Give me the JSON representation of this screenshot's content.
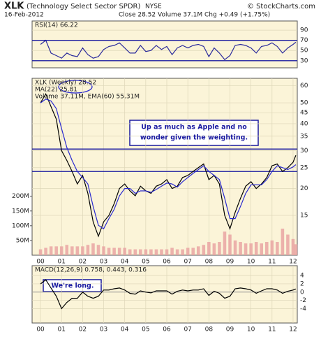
{
  "header": {
    "symbol": "XLK",
    "name": "(Technology Select Sector SPDR)",
    "exchange": "NYSE",
    "date": "16-Feb-2012",
    "quote": "Close 28.52  Volume 37.1M  Chg +0.49 (+1.75%)",
    "credit": "© StockCharts.com"
  },
  "chart_data": [
    {
      "type": "line",
      "legend": "RSI(14) 66.22",
      "x": [
        2000,
        2000.25,
        2000.5,
        2000.75,
        2001,
        2001.25,
        2001.5,
        2001.75,
        2002,
        2002.25,
        2002.5,
        2002.75,
        2003,
        2003.25,
        2003.5,
        2003.75,
        2004,
        2004.25,
        2004.5,
        2004.75,
        2005,
        2005.25,
        2005.5,
        2005.75,
        2006,
        2006.25,
        2006.5,
        2006.75,
        2007,
        2007.25,
        2007.5,
        2007.75,
        2008,
        2008.25,
        2008.5,
        2008.75,
        2009,
        2009.25,
        2009.5,
        2009.75,
        2010,
        2010.25,
        2010.5,
        2010.75,
        2011,
        2011.25,
        2011.5,
        2011.75,
        2012,
        2012.13
      ],
      "series": [
        {
          "name": "RSI(14)",
          "color": "#2a2a9c",
          "values": [
            62,
            70,
            45,
            40,
            35,
            45,
            40,
            38,
            55,
            42,
            35,
            38,
            52,
            58,
            60,
            65,
            55,
            45,
            45,
            60,
            48,
            50,
            60,
            52,
            58,
            42,
            55,
            60,
            55,
            60,
            62,
            58,
            38,
            55,
            45,
            32,
            40,
            60,
            62,
            60,
            55,
            45,
            58,
            60,
            65,
            58,
            45,
            55,
            62,
            66.22
          ]
        }
      ],
      "xlim": [
        1999.6,
        2012.2
      ],
      "ylim": [
        16,
        108
      ],
      "yticks": [
        30,
        50,
        70,
        90
      ],
      "levels": [
        70,
        30
      ]
    },
    {
      "type": "line",
      "legend": "XLK (Weekly) 28.52",
      "legend2": "MA(22) 25.81",
      "legend3": "Volume 37.11M, EMA(60) 55.31M",
      "log_scale": true,
      "x": [
        2000,
        2000.25,
        2000.5,
        2000.75,
        2001,
        2001.25,
        2001.5,
        2001.75,
        2002,
        2002.25,
        2002.5,
        2002.75,
        2003,
        2003.25,
        2003.5,
        2003.75,
        2004,
        2004.25,
        2004.5,
        2004.75,
        2005,
        2005.25,
        2005.5,
        2005.75,
        2006,
        2006.25,
        2006.5,
        2006.75,
        2007,
        2007.25,
        2007.5,
        2007.75,
        2008,
        2008.25,
        2008.5,
        2008.75,
        2009,
        2009.25,
        2009.5,
        2009.75,
        2010,
        2010.25,
        2010.5,
        2010.75,
        2011,
        2011.25,
        2011.5,
        2011.75,
        2012,
        2012.13
      ],
      "series": [
        {
          "name": "XLK",
          "color": "#000000",
          "values": [
            50,
            55,
            48,
            42,
            30,
            27,
            24,
            21,
            23,
            19,
            14,
            12,
            14,
            15,
            17,
            20,
            21,
            19.5,
            18.5,
            20.5,
            19.5,
            19,
            20.5,
            21,
            22,
            20,
            20.5,
            22.5,
            23,
            24,
            25,
            26,
            22,
            23,
            21,
            15,
            13,
            15.5,
            18,
            20.5,
            21.5,
            20,
            21,
            22.5,
            25.5,
            26,
            24,
            25,
            26.5,
            28.52
          ]
        },
        {
          "name": "MA(22)",
          "color": "#2a2ad0",
          "values": [
            50,
            52,
            51,
            47,
            38,
            31,
            27,
            24,
            22.5,
            21,
            16.5,
            13.5,
            13,
            14.5,
            16,
            18.5,
            20,
            20,
            19,
            19.5,
            19.5,
            19.2,
            19.8,
            20.5,
            21.2,
            21,
            20.3,
            21.5,
            22.5,
            23.5,
            24.5,
            25.5,
            24,
            23,
            22,
            18,
            14.5,
            14.5,
            16.5,
            19,
            20.8,
            20.8,
            20.8,
            22,
            24,
            25.5,
            25,
            24.5,
            25.2,
            25.81
          ]
        },
        {
          "name": "Volume",
          "color": "#e8a0a0",
          "axis": "y2",
          "values": [
            20,
            25,
            30,
            30,
            30,
            35,
            30,
            30,
            30,
            35,
            40,
            35,
            30,
            25,
            25,
            25,
            25,
            20,
            20,
            20,
            20,
            20,
            20,
            20,
            20,
            25,
            20,
            20,
            25,
            25,
            30,
            35,
            45,
            40,
            45,
            80,
            70,
            50,
            45,
            40,
            40,
            45,
            40,
            45,
            50,
            45,
            90,
            70,
            55,
            37.11
          ]
        }
      ],
      "xlim": [
        1999.6,
        2012.2
      ],
      "ylim": [
        9.8,
        65
      ],
      "yticks": [
        15,
        20,
        25,
        30,
        35,
        40,
        45,
        50,
        60
      ],
      "y2lim": [
        0,
        600
      ],
      "y2ticks": [
        {
          "value": 50,
          "label": "50M"
        },
        {
          "value": 100,
          "label": "100M"
        },
        {
          "value": 150,
          "label": "150M"
        },
        {
          "value": 200,
          "label": "200M"
        }
      ],
      "xticks": [
        {
          "value": 2000,
          "label": "00"
        },
        {
          "value": 2001,
          "label": "01"
        },
        {
          "value": 2002,
          "label": "02"
        },
        {
          "value": 2003,
          "label": "03"
        },
        {
          "value": 2004,
          "label": "04"
        },
        {
          "value": 2005,
          "label": "05"
        },
        {
          "value": 2006,
          "label": "06"
        },
        {
          "value": 2007,
          "label": "07"
        },
        {
          "value": 2008,
          "label": "08"
        },
        {
          "value": 2009,
          "label": "09"
        },
        {
          "value": 2010,
          "label": "10"
        },
        {
          "value": 2011,
          "label": "11"
        },
        {
          "value": 2012,
          "label": "12"
        }
      ],
      "levels": [
        30.5,
        24
      ],
      "annotations": [
        "Up as much as Apple and no",
        "wonder given the weighting."
      ]
    },
    {
      "type": "line",
      "legend": "MACD(12,26,9) 0.758, 0.443, 0.316",
      "x": [
        2000,
        2000.25,
        2000.5,
        2000.75,
        2001,
        2001.25,
        2001.5,
        2001.75,
        2002,
        2002.25,
        2002.5,
        2002.75,
        2003,
        2003.25,
        2003.5,
        2003.75,
        2004,
        2004.25,
        2004.5,
        2004.75,
        2005,
        2005.25,
        2005.5,
        2005.75,
        2006,
        2006.25,
        2006.5,
        2006.75,
        2007,
        2007.25,
        2007.5,
        2007.75,
        2008,
        2008.25,
        2008.5,
        2008.75,
        2009,
        2009.25,
        2009.5,
        2009.75,
        2010,
        2010.25,
        2010.5,
        2010.75,
        2011,
        2011.25,
        2011.5,
        2011.75,
        2012,
        2012.13
      ],
      "series": [
        {
          "name": "MACD",
          "color": "#000000",
          "values": [
            2,
            3,
            1,
            -1,
            -4,
            -2.5,
            -1.5,
            -1.5,
            0,
            -1,
            -1.5,
            -1,
            0.5,
            0.5,
            0.8,
            1,
            0.5,
            -0.3,
            -0.5,
            0.3,
            0,
            -0.2,
            0.3,
            0.3,
            0.3,
            -0.5,
            0.2,
            0.5,
            0.3,
            0.5,
            0.5,
            0.8,
            -0.8,
            0.2,
            -0.3,
            -1.5,
            -1,
            0.8,
            1,
            0.8,
            0.5,
            -0.3,
            0.3,
            0.8,
            0.8,
            0.5,
            -0.3,
            0.2,
            0.5,
            0.758
          ]
        }
      ],
      "xlim": [
        1999.6,
        2012.2
      ],
      "ylim": [
        -7.5,
        6.4
      ],
      "yticks": [
        -4,
        -2,
        0,
        2,
        4
      ],
      "xticks": [
        {
          "value": 2000,
          "label": "00"
        },
        {
          "value": 2001,
          "label": "01"
        },
        {
          "value": 2002,
          "label": "02"
        },
        {
          "value": 2003,
          "label": "03"
        },
        {
          "value": 2004,
          "label": "04"
        },
        {
          "value": 2005,
          "label": "05"
        },
        {
          "value": 2006,
          "label": "06"
        },
        {
          "value": 2007,
          "label": "07"
        },
        {
          "value": 2008,
          "label": "08"
        },
        {
          "value": 2009,
          "label": "09"
        },
        {
          "value": 2010,
          "label": "10"
        },
        {
          "value": 2011,
          "label": "11"
        },
        {
          "value": 2012,
          "label": "12"
        }
      ],
      "annotations": [
        "We're long."
      ]
    }
  ]
}
